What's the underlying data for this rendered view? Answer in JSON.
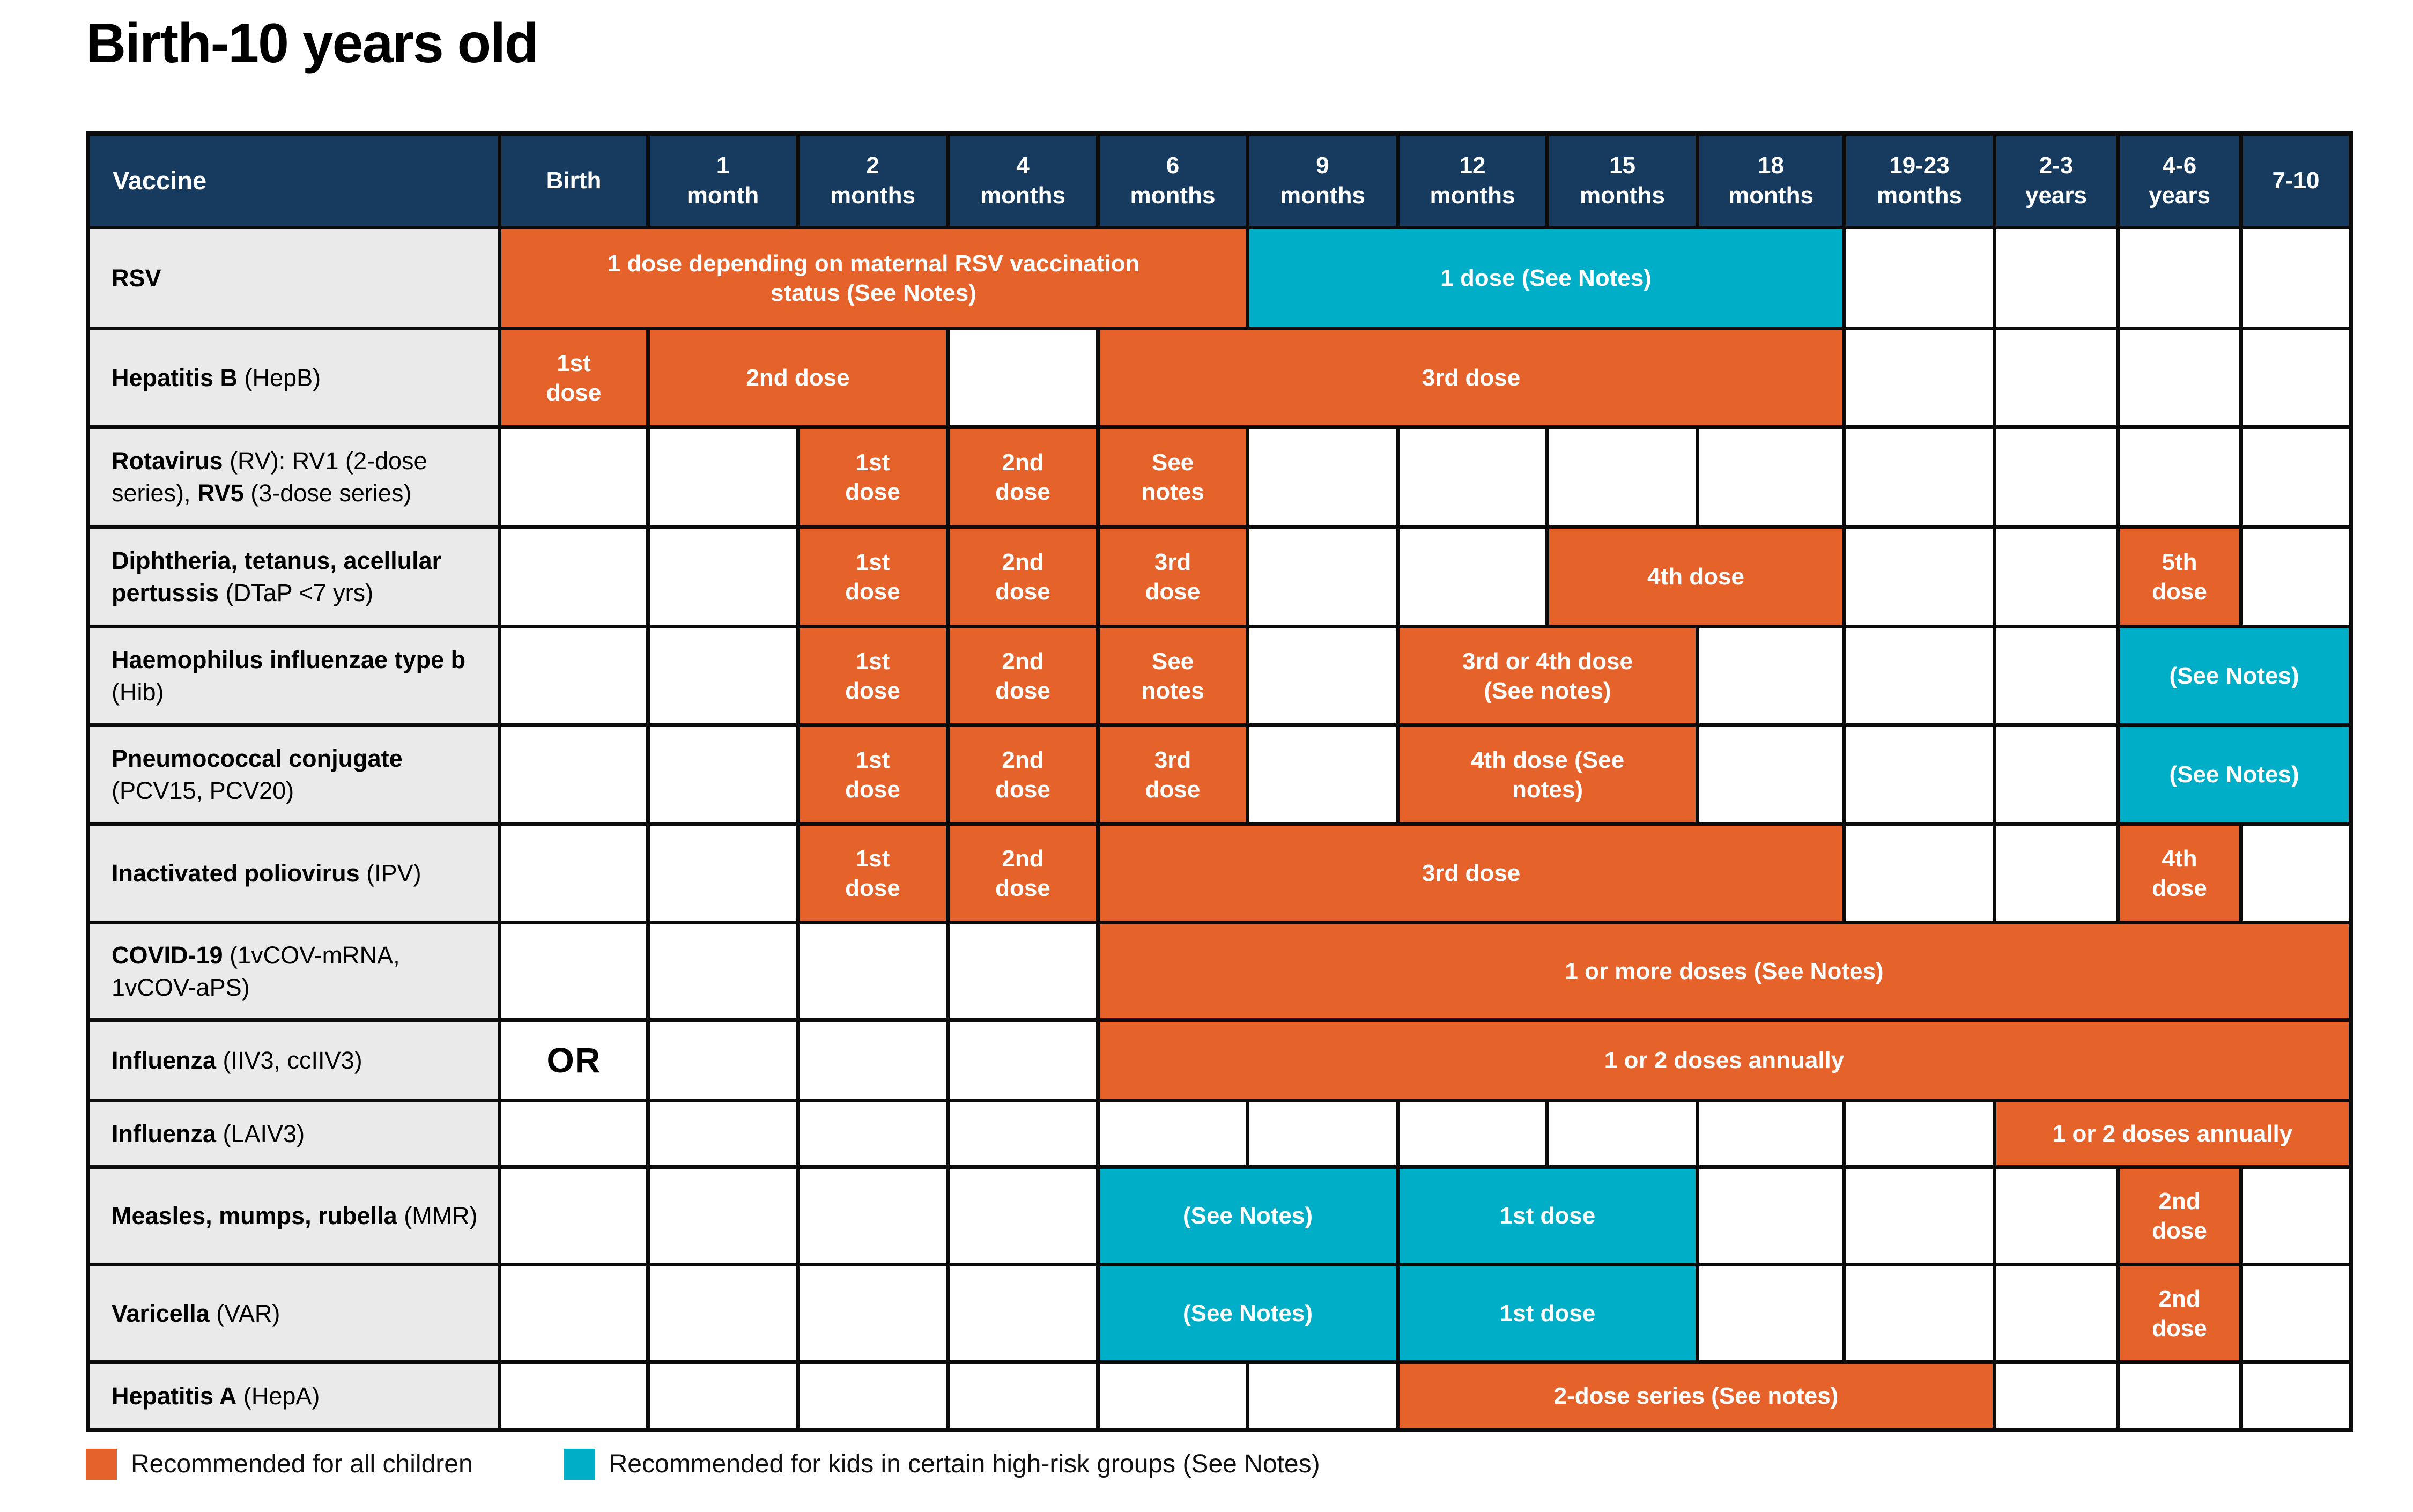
{
  "title": "Birth-10 years old",
  "colors": {
    "orange": "#E5632B",
    "teal": "#00AEC7",
    "header_navy": "#173A5F",
    "label_gray": "#EAEAEA",
    "border": "#0B0B0B"
  },
  "chart_data": {
    "type": "table",
    "title": "Birth-10 years old",
    "columns": [
      "Vaccine",
      "Birth",
      "1\nmonth",
      "2\nmonths",
      "4\nmonths",
      "6\nmonths",
      "9\nmonths",
      "12\nmonths",
      "15\nmonths",
      "18\nmonths",
      "19-23\nmonths",
      "2-3\nyears",
      "4-6\nyears",
      "7-10"
    ],
    "legend": [
      {
        "swatch": "orange",
        "label": "Recommended for all children"
      },
      {
        "swatch": "teal",
        "label": "Recommended for kids in certain high-risk groups (See Notes)"
      }
    ],
    "rows": [
      {
        "key": "rsv",
        "label": [
          {
            "t": "RSV",
            "b": true
          }
        ],
        "cells": [
          {
            "start": 1,
            "span": 5,
            "color": "orange",
            "text": "1 dose depending on maternal RSV vaccination\nstatus (See Notes)"
          },
          {
            "start": 6,
            "span": 4,
            "color": "teal",
            "text": "1 dose (See Notes)"
          }
        ]
      },
      {
        "key": "hepb",
        "label": [
          {
            "t": "Hepatitis B",
            "b": true
          },
          {
            "t": " (HepB)",
            "b": false
          }
        ],
        "cells": [
          {
            "start": 1,
            "span": 1,
            "color": "orange",
            "text": "1st\ndose"
          },
          {
            "start": 2,
            "span": 2,
            "color": "orange",
            "text": "2nd dose"
          },
          {
            "start": 5,
            "span": 5,
            "color": "orange",
            "text": "3rd dose"
          }
        ]
      },
      {
        "key": "rotavirus",
        "label": [
          {
            "t": "Rotavirus",
            "b": true
          },
          {
            "t": " (RV): RV1 (2-dose series), ",
            "b": false
          },
          {
            "t": "RV5",
            "b": true
          },
          {
            "t": " (3-dose series)",
            "b": false
          }
        ],
        "cells": [
          {
            "start": 3,
            "span": 1,
            "color": "orange",
            "text": "1st\ndose"
          },
          {
            "start": 4,
            "span": 1,
            "color": "orange",
            "text": "2nd\ndose"
          },
          {
            "start": 5,
            "span": 1,
            "color": "orange",
            "text": "See\nnotes"
          }
        ]
      },
      {
        "key": "dtap",
        "label": [
          {
            "t": "Diphtheria, tetanus, acellular pertussis",
            "b": true
          },
          {
            "t": " (DTaP <7 yrs)",
            "b": false
          }
        ],
        "cells": [
          {
            "start": 3,
            "span": 1,
            "color": "orange",
            "text": "1st\ndose"
          },
          {
            "start": 4,
            "span": 1,
            "color": "orange",
            "text": "2nd\ndose"
          },
          {
            "start": 5,
            "span": 1,
            "color": "orange",
            "text": "3rd\ndose"
          },
          {
            "start": 8,
            "span": 2,
            "color": "orange",
            "text": "4th dose"
          },
          {
            "start": 12,
            "span": 1,
            "color": "orange",
            "text": "5th\ndose"
          }
        ]
      },
      {
        "key": "hib",
        "label": [
          {
            "t": "Haemophilus influenzae type b",
            "b": true
          },
          {
            "t": " (Hib)",
            "b": false
          }
        ],
        "cells": [
          {
            "start": 3,
            "span": 1,
            "color": "orange",
            "text": "1st\ndose"
          },
          {
            "start": 4,
            "span": 1,
            "color": "orange",
            "text": "2nd\ndose"
          },
          {
            "start": 5,
            "span": 1,
            "color": "orange",
            "text": "See\nnotes"
          },
          {
            "start": 7,
            "span": 2,
            "color": "orange",
            "text": "3rd or 4th dose\n(See notes)"
          },
          {
            "start": 12,
            "span": 2,
            "color": "teal",
            "text": "(See Notes)"
          }
        ]
      },
      {
        "key": "pcv",
        "label": [
          {
            "t": "Pneumococcal conjugate",
            "b": true
          },
          {
            "t": " (PCV15, PCV20)",
            "b": false
          }
        ],
        "cells": [
          {
            "start": 3,
            "span": 1,
            "color": "orange",
            "text": "1st\ndose"
          },
          {
            "start": 4,
            "span": 1,
            "color": "orange",
            "text": "2nd\ndose"
          },
          {
            "start": 5,
            "span": 1,
            "color": "orange",
            "text": "3rd\ndose"
          },
          {
            "start": 7,
            "span": 2,
            "color": "orange",
            "text": "4th dose (See\nnotes)"
          },
          {
            "start": 12,
            "span": 2,
            "color": "teal",
            "text": "(See Notes)"
          }
        ]
      },
      {
        "key": "ipv",
        "label": [
          {
            "t": "Inactivated poliovirus",
            "b": true
          },
          {
            "t": " (IPV)",
            "b": false
          }
        ],
        "cells": [
          {
            "start": 3,
            "span": 1,
            "color": "orange",
            "text": "1st\ndose"
          },
          {
            "start": 4,
            "span": 1,
            "color": "orange",
            "text": "2nd\ndose"
          },
          {
            "start": 5,
            "span": 5,
            "color": "orange",
            "text": "3rd dose"
          },
          {
            "start": 12,
            "span": 1,
            "color": "orange",
            "text": "4th\ndose"
          }
        ]
      },
      {
        "key": "covid19",
        "label": [
          {
            "t": "COVID-19",
            "b": true
          },
          {
            "t": " (1vCOV-mRNA, 1vCOV-aPS)",
            "b": false
          }
        ],
        "cells": [
          {
            "start": 5,
            "span": 9,
            "color": "orange",
            "text": "1 or more doses (See Notes)"
          }
        ]
      },
      {
        "key": "influenza-iiv3",
        "label": [
          {
            "t": "Influenza",
            "b": true
          },
          {
            "t": " (IIV3, ccIIV3)",
            "b": false
          }
        ],
        "cells": [
          {
            "start": 1,
            "span": 1,
            "color": "or",
            "text": "OR"
          },
          {
            "start": 5,
            "span": 9,
            "color": "orange",
            "text": "1 or 2 doses annually"
          }
        ]
      },
      {
        "key": "influenza-laiv3",
        "label": [
          {
            "t": "Influenza",
            "b": true
          },
          {
            "t": " (LAIV3)",
            "b": false
          }
        ],
        "cells": [
          {
            "start": 11,
            "span": 3,
            "color": "orange",
            "text": "1 or 2 doses annually"
          }
        ]
      },
      {
        "key": "mmr",
        "label": [
          {
            "t": "Measles, mumps, rubella",
            "b": true
          },
          {
            "t": " (MMR)",
            "b": false
          }
        ],
        "cells": [
          {
            "start": 5,
            "span": 2,
            "color": "teal",
            "text": "(See Notes)"
          },
          {
            "start": 7,
            "span": 2,
            "color": "teal",
            "text": "1st dose"
          },
          {
            "start": 12,
            "span": 1,
            "color": "orange",
            "text": "2nd\ndose"
          }
        ]
      },
      {
        "key": "var",
        "label": [
          {
            "t": "Varicella",
            "b": true
          },
          {
            "t": " (VAR)",
            "b": false
          }
        ],
        "cells": [
          {
            "start": 5,
            "span": 2,
            "color": "teal",
            "text": "(See Notes)"
          },
          {
            "start": 7,
            "span": 2,
            "color": "teal",
            "text": "1st dose"
          },
          {
            "start": 12,
            "span": 1,
            "color": "orange",
            "text": "2nd\ndose"
          }
        ]
      },
      {
        "key": "hepa",
        "label": [
          {
            "t": "Hepatitis A",
            "b": true
          },
          {
            "t": " (HepA)",
            "b": false
          }
        ],
        "cells": [
          {
            "start": 7,
            "span": 4,
            "color": "orange",
            "text": "2-dose series (See notes)"
          }
        ]
      }
    ]
  }
}
